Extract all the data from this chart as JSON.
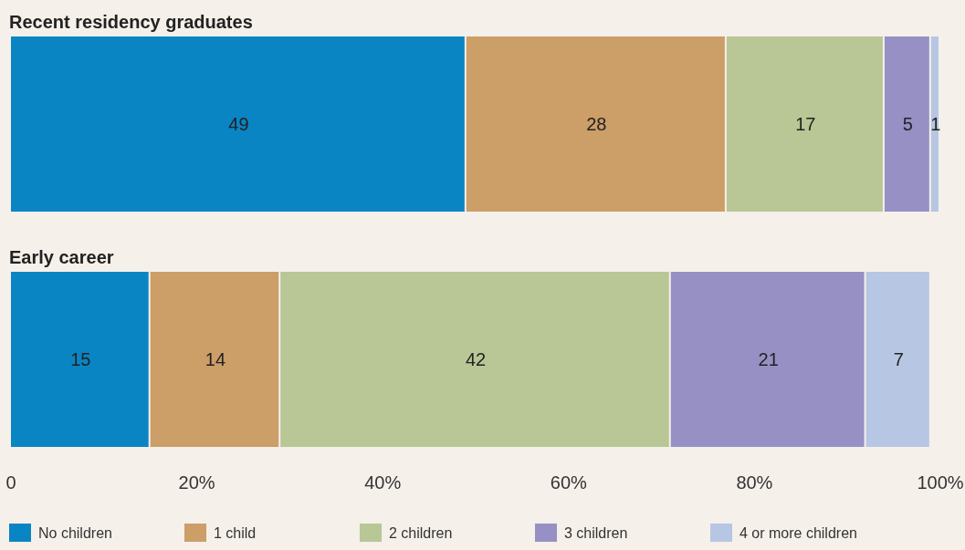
{
  "chart_data": {
    "type": "bar",
    "orientation": "horizontal",
    "stacked": true,
    "categories": [
      "Recent residency graduates",
      "Early career"
    ],
    "series": [
      {
        "name": "No children",
        "color": "#0a85c4",
        "values": [
          49,
          15
        ]
      },
      {
        "name": "1 child",
        "color": "#cc9e68",
        "values": [
          28,
          14
        ]
      },
      {
        "name": "2 children",
        "color": "#b8c795",
        "values": [
          17,
          42
        ]
      },
      {
        "name": "3 children",
        "color": "#9690c4",
        "values": [
          5,
          21
        ]
      },
      {
        "name": "4 or more children",
        "color": "#b6c6e3",
        "values": [
          1,
          7
        ]
      }
    ],
    "xlim": [
      0,
      100
    ],
    "xticks": [
      0,
      {
        "value": 20,
        "label": "20%"
      },
      {
        "value": 40,
        "label": "40%"
      },
      {
        "value": 60,
        "label": "60%"
      },
      {
        "value": 80,
        "label": "80%"
      },
      {
        "value": 100,
        "label": "100%"
      }
    ],
    "data_labels": true,
    "legend": "bottom",
    "grid": false
  }
}
